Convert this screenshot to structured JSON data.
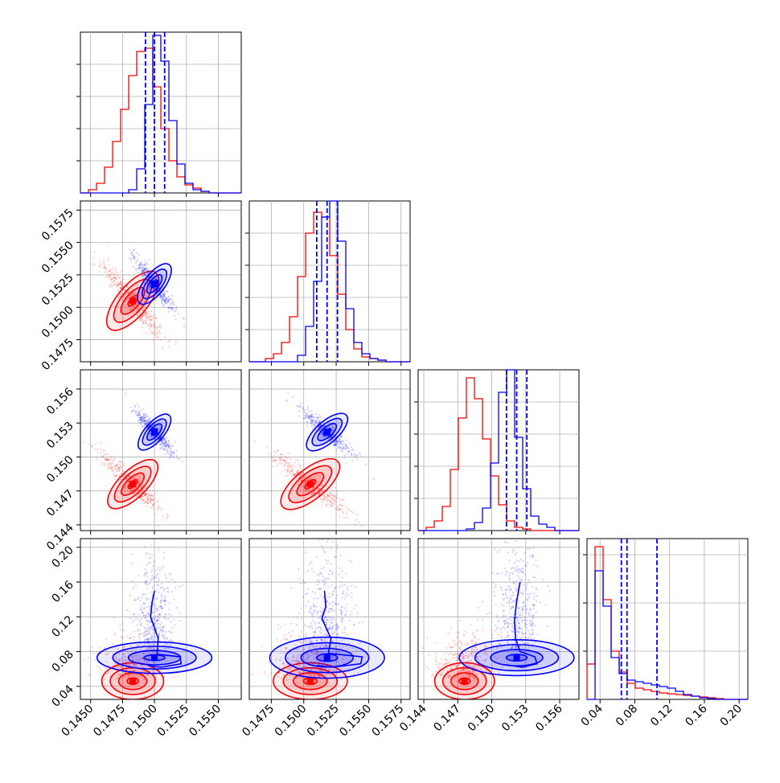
{
  "colors": {
    "red": "#ff0000",
    "blue": "#0000ff",
    "grid": "#b0b0b0"
  },
  "chart_data": {
    "type": "corner",
    "grid": true,
    "ranges": [
      [
        0.1442,
        0.1568
      ],
      [
        0.1458,
        0.1582
      ],
      [
        0.1435,
        0.1577
      ],
      [
        0.025,
        0.21
      ]
    ],
    "ticks": [
      [
        "0.1450",
        "0.1475",
        "0.1500",
        "0.1525",
        "0.1550"
      ],
      [
        "0.1475",
        "0.1500",
        "0.1525",
        "0.1550",
        "0.1575"
      ],
      [
        "0.144",
        "0.147",
        "0.150",
        "0.153",
        "0.156"
      ],
      [
        "0.04",
        "0.08",
        "0.12",
        "0.16",
        "0.20"
      ]
    ],
    "hist_ticks": [
      [
        0.2,
        0.4,
        0.6,
        0.8
      ],
      [
        0.2,
        0.4,
        0.6,
        0.8
      ],
      [
        0.2,
        0.4,
        0.6,
        0.8
      ],
      [
        0.3,
        0.6,
        0.9
      ]
    ],
    "series": [
      {
        "color": "red",
        "means": [
          0.1483,
          0.1505,
          0.1476,
          0.046
        ],
        "sds": [
          0.0011,
          0.0013,
          0.0012,
          0.012
        ],
        "histograms": [
          [
            0.0,
            0.02,
            0.06,
            0.16,
            0.32,
            0.52,
            0.73,
            0.88,
            0.9,
            0.66,
            0.4,
            0.2,
            0.1,
            0.05,
            0.03,
            0.01,
            0.0,
            0.0,
            0.0,
            0.0
          ],
          [
            0.0,
            0.0,
            0.02,
            0.05,
            0.12,
            0.28,
            0.53,
            0.8,
            0.93,
            0.9,
            0.66,
            0.42,
            0.2,
            0.08,
            0.03,
            0.02,
            0.01,
            0.0,
            0.0,
            0.0
          ],
          [
            0.0,
            0.02,
            0.06,
            0.15,
            0.38,
            0.7,
            0.95,
            0.82,
            0.57,
            0.34,
            0.16,
            0.06,
            0.02,
            0.01,
            0.0,
            0.0,
            0.0,
            0.0,
            0.0,
            0.0
          ],
          [
            0.22,
            0.95,
            0.62,
            0.3,
            0.17,
            0.1,
            0.07,
            0.06,
            0.05,
            0.04,
            0.035,
            0.03,
            0.025,
            0.02,
            0.015,
            0.01,
            0.005,
            0.0,
            0.0,
            0.0
          ]
        ]
      },
      {
        "color": "blue",
        "means": [
          0.15,
          0.1518,
          0.1522,
          0.073
        ],
        "sds": [
          0.0007,
          0.0009,
          0.0009,
          0.03
        ],
        "histograms": [
          [
            0.0,
            0.0,
            0.0,
            0.0,
            0.0,
            0.0,
            0.02,
            0.15,
            0.55,
            0.98,
            0.82,
            0.45,
            0.18,
            0.06,
            0.02,
            0.01,
            0.0,
            0.0,
            0.0,
            0.0
          ],
          [
            0.0,
            0.0,
            0.0,
            0.0,
            0.0,
            0.0,
            0.04,
            0.22,
            0.5,
            0.9,
            1.0,
            0.75,
            0.33,
            0.12,
            0.05,
            0.02,
            0.01,
            0.0,
            0.0,
            0.0
          ],
          [
            0.0,
            0.0,
            0.0,
            0.0,
            0.0,
            0.0,
            0.01,
            0.05,
            0.14,
            0.42,
            0.86,
            1.0,
            0.58,
            0.26,
            0.09,
            0.04,
            0.02,
            0.0,
            0.0,
            0.0
          ],
          [
            0.0,
            0.8,
            0.58,
            0.26,
            0.16,
            0.12,
            0.11,
            0.1,
            0.09,
            0.08,
            0.07,
            0.05,
            0.03,
            0.02,
            0.01,
            0.005,
            0.0,
            0.0,
            0.0,
            0.0
          ]
        ],
        "quantiles": [
          [
            0.1493,
            0.15,
            0.1508
          ],
          [
            0.151,
            0.1518,
            0.1526
          ],
          [
            0.1513,
            0.1522,
            0.1531
          ],
          [
            0.0645,
            0.071,
            0.1055
          ]
        ]
      }
    ],
    "contour_levels": [
      0.4,
      1.0,
      1.6,
      2.2
    ],
    "tails": [
      {
        "pair": [
          0,
          3
        ],
        "points": [
          [
            0.15,
            0.15
          ],
          [
            0.1498,
            0.135
          ],
          [
            0.1497,
            0.12
          ],
          [
            0.1503,
            0.095
          ],
          [
            0.1502,
            0.077
          ],
          [
            0.152,
            0.074
          ],
          [
            0.1521,
            0.066
          ],
          [
            0.1505,
            0.062
          ],
          [
            0.1495,
            0.064
          ]
        ]
      },
      {
        "pair": [
          1,
          3
        ],
        "points": [
          [
            0.1516,
            0.15
          ],
          [
            0.1517,
            0.132
          ],
          [
            0.1514,
            0.118
          ],
          [
            0.1521,
            0.095
          ],
          [
            0.1519,
            0.078
          ],
          [
            0.1545,
            0.074
          ],
          [
            0.1544,
            0.066
          ],
          [
            0.1522,
            0.062
          ],
          [
            0.151,
            0.064
          ]
        ]
      },
      {
        "pair": [
          2,
          3
        ],
        "points": [
          [
            0.1525,
            0.16
          ],
          [
            0.1522,
            0.138
          ],
          [
            0.152,
            0.115
          ],
          [
            0.1521,
            0.095
          ],
          [
            0.1525,
            0.08
          ],
          [
            0.1538,
            0.074
          ],
          [
            0.154,
            0.066
          ],
          [
            0.1527,
            0.062
          ],
          [
            0.1512,
            0.065
          ]
        ]
      }
    ]
  }
}
